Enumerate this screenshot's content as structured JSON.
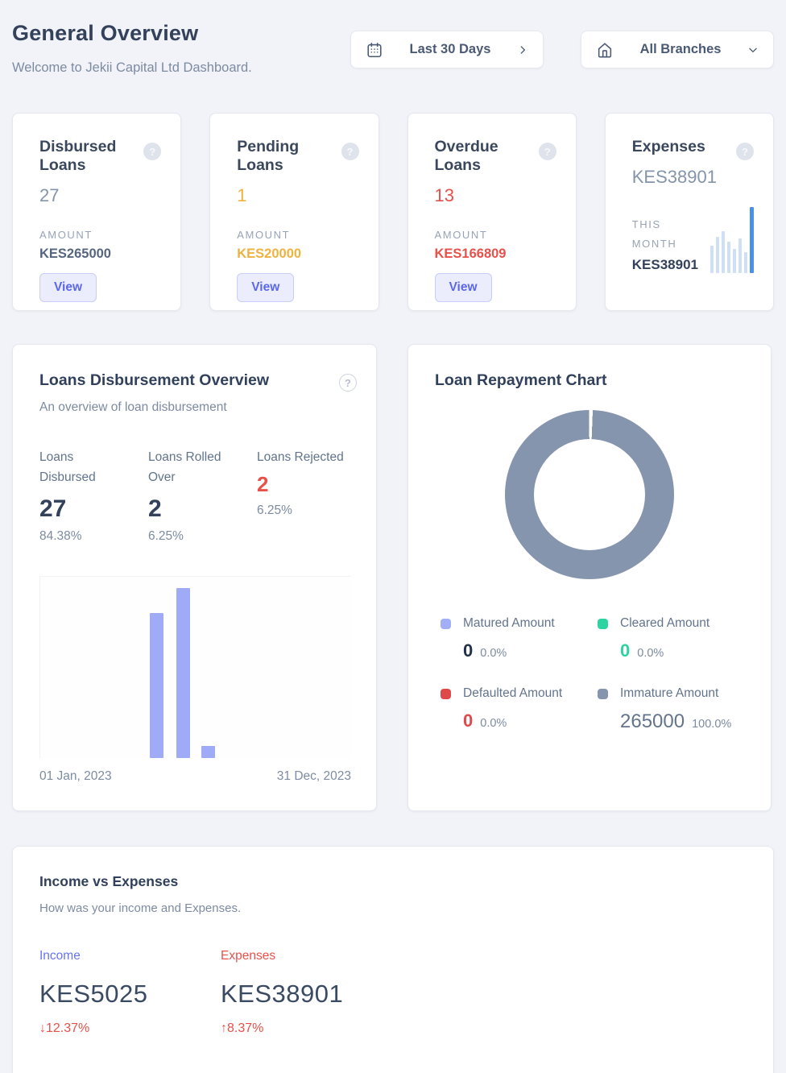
{
  "colors": {
    "page_bg": "#f1f3f8",
    "heading": "#34415a",
    "muted": "#7d8ba1",
    "gray_value": "#8494ab",
    "dark_value": "#33415b",
    "amber": "#eeb23f",
    "red": "#e8504a",
    "indigo": "#5b68ee",
    "periwinkle": "#a0abf7",
    "green": "#2ed3a2",
    "donut_slate": "#8695ae",
    "spark_light": "#cfe0f6",
    "spark_blue": "#4a8fe8"
  },
  "header": {
    "title": "General Overview",
    "subtitle": "Welcome to Jekii Capital Ltd Dashboard.",
    "date_filter_label": "Last 30 Days",
    "branch_filter_label": "All Branches"
  },
  "stat_cards": [
    {
      "title": "Disbursed Loans",
      "count": "27",
      "count_color": "#8494ab",
      "amount_label": "AMOUNT",
      "amount": "KES265000",
      "amount_color": "#55657e",
      "action_label": "View",
      "help_icon": "?"
    },
    {
      "title": "Pending Loans",
      "count": "1",
      "count_color": "#eeb23f",
      "amount_label": "AMOUNT",
      "amount": "KES20000",
      "amount_color": "#eeb23f",
      "action_label": "View",
      "help_icon": "?"
    },
    {
      "title": "Overdue Loans",
      "count": "13",
      "count_color": "#e8504a",
      "amount_label": "AMOUNT",
      "amount": "KES166809",
      "amount_color": "#e8504a",
      "action_label": "View",
      "help_icon": "?"
    },
    {
      "title": "Expenses",
      "count": "KES38901",
      "count_color": "#8494ab",
      "period_label_line1": "THIS",
      "period_label_line2": "MONTH",
      "period_amount": "KES38901",
      "help_icon": "?"
    }
  ],
  "disbursement": {
    "title": "Loans Disbursement Overview",
    "subtitle": "An overview of loan disbursement",
    "help_icon": "?",
    "stats": [
      {
        "label": "Loans Disbursed",
        "value": "27",
        "percent": "84.38%",
        "value_color": "#33415b"
      },
      {
        "label": "Loans Rolled Over",
        "value": "2",
        "percent": "6.25%",
        "value_color": "#33415b"
      },
      {
        "label": "Loans Rejected",
        "value": "2",
        "percent": "6.25%",
        "value_color": "#e8504a"
      }
    ],
    "axis_start": "01 Jan, 2023",
    "axis_end": "31 Dec, 2023"
  },
  "repayment": {
    "title": "Loan Repayment Chart",
    "legend": [
      {
        "label": "Matured Amount",
        "value": "0",
        "percent": "0.0%",
        "swatch": "#a2aef8",
        "value_color": "#22304a"
      },
      {
        "label": "Cleared Amount",
        "value": "0",
        "percent": "0.0%",
        "swatch": "#2ed3a2",
        "value_color": "#2ed3a2"
      },
      {
        "label": "Defaulted Amount",
        "value": "0",
        "percent": "0.0%",
        "swatch": "#e0494a",
        "value_color": "#e0494a"
      },
      {
        "label": "Immature Amount",
        "value": "265000",
        "percent": "100.0%",
        "swatch": "#8695ae",
        "value_color": "#64748b"
      }
    ]
  },
  "income_expenses": {
    "title": "Income vs Expenses",
    "subtitle": "How was your income and Expenses.",
    "income": {
      "label": "Income",
      "label_color": "#6575f2",
      "value": "KES5025",
      "change": "12.37%",
      "direction": "↓"
    },
    "expenses": {
      "label": "Expenses",
      "label_color": "#e8504a",
      "value": "KES38901",
      "change": "8.37%",
      "direction": "↑"
    }
  },
  "chart_data": [
    {
      "type": "bar",
      "title": "Loans Disbursement Overview",
      "xlabel": "",
      "ylabel": "",
      "x_axis_labels": [
        "01 Jan, 2023",
        "31 Dec, 2023"
      ],
      "bar_color": "#a0abf7",
      "bars": [
        {
          "x_frac": 0.352,
          "height_frac": 0.8
        },
        {
          "x_frac": 0.437,
          "height_frac": 0.94
        },
        {
          "x_frac": 0.519,
          "height_frac": 0.066
        }
      ],
      "note": "y-axis unlabeled; three disbursement spikes mid-year"
    },
    {
      "type": "pie",
      "title": "Loan Repayment Chart",
      "donut": true,
      "labels": [
        "Matured Amount",
        "Cleared Amount",
        "Defaulted Amount",
        "Immature Amount"
      ],
      "values": [
        0,
        0,
        0,
        265000
      ],
      "percents": [
        0.0,
        0.0,
        0.0,
        100.0
      ],
      "colors": [
        "#a2aef8",
        "#2ed3a2",
        "#e0494a",
        "#8695ae"
      ],
      "legend_position": "bottom"
    },
    {
      "type": "bar",
      "title": "Expenses this month sparkline",
      "values_frac": [
        0.42,
        0.55,
        0.64,
        0.48,
        0.36,
        0.52,
        0.32,
        1.0
      ],
      "colors": [
        "#cfe0f6",
        "#cfe0f6",
        "#cfe0f6",
        "#cfe0f6",
        "#cfe0f6",
        "#cfe0f6",
        "#cfe0f6",
        "#4a8fe8"
      ]
    }
  ]
}
